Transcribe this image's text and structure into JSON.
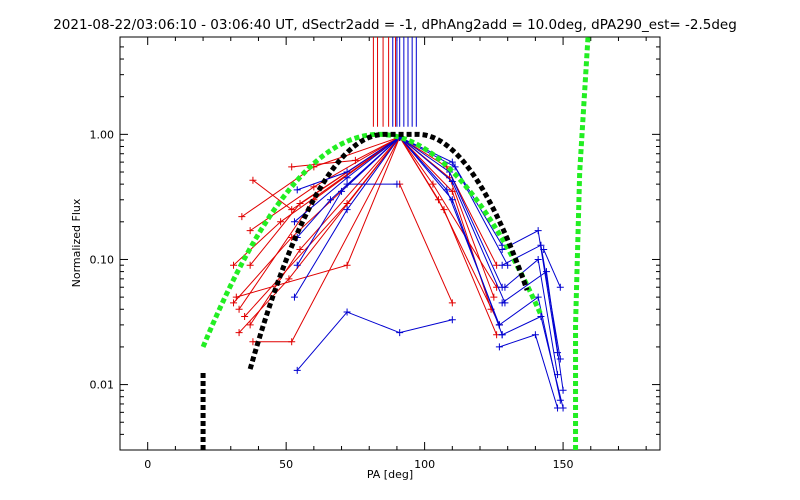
{
  "chart_data": {
    "type": "line",
    "title": "2021-08-22/03:06:10 - 03:06:40 UT, dSectr2add = -1, dPhAng2add = 10.0deg, dPA290_est= -2.5deg",
    "xlabel": "PA [deg]",
    "ylabel": "Normalized Flux",
    "xlim": [
      -10,
      185
    ],
    "ylim": [
      0.003,
      6.0
    ],
    "yscale": "log",
    "x_ticks": [
      0,
      50,
      100,
      150
    ],
    "x_tick_labels": [
      "0",
      "50",
      "100",
      "150"
    ],
    "y_ticks": [
      0.01,
      0.1,
      1.0
    ],
    "y_tick_labels": [
      "0.01",
      "0.10",
      "1.00"
    ],
    "grid": false,
    "colors": {
      "red": "#e00000",
      "blue": "#0000d0",
      "green": "#22ee22",
      "black": "#000000"
    },
    "vertical_markers": {
      "ymin": 1.15,
      "ymax": 6.0,
      "red": [
        81.5,
        83,
        85,
        87,
        89.5
      ],
      "blue": [
        88.5,
        90,
        91,
        92.5,
        94,
        95.5,
        97
      ]
    },
    "series": [
      {
        "color": "red",
        "style": "plus-line",
        "segments": [
          [
            [
              52,
              0.55
            ],
            [
              75,
              0.62
            ],
            [
              91,
              0.95
            ]
          ],
          [
            [
              38,
              0.43
            ],
            [
              52,
              0.25
            ],
            [
              91,
              0.95
            ]
          ],
          [
            [
              34,
              0.22
            ],
            [
              60,
              0.55
            ],
            [
              91,
              0.95
            ]
          ],
          [
            [
              37,
              0.17
            ],
            [
              60,
              0.38
            ],
            [
              91,
              0.95
            ]
          ],
          [
            [
              31,
              0.09
            ],
            [
              48,
              0.2
            ],
            [
              91,
              0.95
            ]
          ],
          [
            [
              37,
              0.09
            ],
            [
              55,
              0.28
            ],
            [
              91,
              0.95
            ]
          ],
          [
            [
              32,
              0.05
            ],
            [
              72,
              0.09
            ],
            [
              91,
              0.95
            ]
          ],
          [
            [
              31,
              0.045
            ],
            [
              52,
              0.15
            ],
            [
              91,
              0.95
            ]
          ],
          [
            [
              33,
              0.04
            ],
            [
              60,
              0.3
            ],
            [
              91,
              0.95
            ]
          ],
          [
            [
              35,
              0.035
            ],
            [
              72,
              0.28
            ],
            [
              91,
              0.95
            ]
          ],
          [
            [
              37,
              0.03
            ],
            [
              55,
              0.12
            ],
            [
              91,
              0.95
            ]
          ],
          [
            [
              33,
              0.026
            ],
            [
              51,
              0.07
            ],
            [
              91,
              0.95
            ]
          ],
          [
            [
              38,
              0.022
            ],
            [
              52,
              0.022
            ],
            [
              91,
              0.95
            ]
          ],
          [
            [
              91,
              0.4
            ],
            [
              110,
              0.045
            ]
          ],
          [
            [
              91,
              0.95
            ],
            [
              108,
              0.55
            ],
            [
              126,
              0.09
            ]
          ],
          [
            [
              91,
              0.95
            ],
            [
              109,
              0.45
            ],
            [
              125,
              0.05
            ]
          ],
          [
            [
              91,
              0.95
            ],
            [
              110,
              0.35
            ],
            [
              124,
              0.04
            ]
          ],
          [
            [
              91,
              0.95
            ],
            [
              105,
              0.3
            ],
            [
              127,
              0.03
            ]
          ],
          [
            [
              91,
              0.95
            ],
            [
              107,
              0.25
            ],
            [
              126,
              0.025
            ]
          ],
          [
            [
              91,
              0.95
            ],
            [
              103,
              0.4
            ],
            [
              126,
              0.06
            ]
          ]
        ]
      },
      {
        "color": "blue",
        "style": "plus-line",
        "segments": [
          [
            [
              54,
              0.36
            ],
            [
              72,
              0.5
            ],
            [
              91,
              0.95
            ]
          ],
          [
            [
              53,
              0.2
            ],
            [
              72,
              0.45
            ],
            [
              91,
              0.95
            ]
          ],
          [
            [
              54,
              0.15
            ],
            [
              66,
              0.3
            ],
            [
              91,
              0.95
            ]
          ],
          [
            [
              54,
              0.09
            ],
            [
              70,
              0.35
            ],
            [
              91,
              0.95
            ]
          ],
          [
            [
              53,
              0.05
            ],
            [
              72,
              0.25
            ],
            [
              91,
              0.95
            ]
          ],
          [
            [
              54,
              0.013
            ],
            [
              72,
              0.038
            ],
            [
              91,
              0.026
            ],
            [
              110,
              0.033
            ]
          ],
          [
            [
              72,
              0.4
            ],
            [
              90,
              0.4
            ]
          ],
          [
            [
              91,
              0.95
            ],
            [
              110,
              0.6
            ],
            [
              128,
              0.13
            ]
          ],
          [
            [
              91,
              0.95
            ],
            [
              111,
              0.55
            ],
            [
              130,
              0.09
            ]
          ],
          [
            [
              91,
              0.95
            ],
            [
              109,
              0.5
            ],
            [
              128,
              0.06
            ]
          ],
          [
            [
              91,
              0.95
            ],
            [
              110,
              0.42
            ],
            [
              129,
              0.045
            ]
          ],
          [
            [
              91,
              0.95
            ],
            [
              108,
              0.36
            ],
            [
              127,
              0.03
            ]
          ],
          [
            [
              91,
              0.95
            ],
            [
              110,
              0.3
            ],
            [
              128,
              0.025
            ]
          ],
          [
            [
              128,
              0.12
            ],
            [
              141,
              0.17
            ],
            [
              148,
              0.018
            ]
          ],
          [
            [
              128,
              0.09
            ],
            [
              142,
              0.13
            ],
            [
              149,
              0.016
            ]
          ],
          [
            [
              129,
              0.06
            ],
            [
              141,
              0.1
            ],
            [
              148,
              0.012
            ]
          ],
          [
            [
              128,
              0.045
            ],
            [
              144,
              0.08
            ],
            [
              150,
              0.009
            ]
          ],
          [
            [
              127,
              0.03
            ],
            [
              141,
              0.05
            ],
            [
              149,
              0.0075
            ]
          ],
          [
            [
              128,
              0.025
            ],
            [
              142,
              0.035
            ],
            [
              150,
              0.0065
            ]
          ],
          [
            [
              127,
              0.02
            ],
            [
              140,
              0.025
            ],
            [
              148,
              0.0065
            ]
          ],
          [
            [
              143,
              0.12
            ],
            [
              149,
              0.06
            ]
          ]
        ]
      },
      {
        "color": "green",
        "style": "thick-dashed",
        "curves": [
          {
            "peak_x": 83.5,
            "sigma": 22.7,
            "x_from": 20,
            "x_to": 142
          },
          {
            "x": [
              154.5,
              154.5,
              156,
              159
            ],
            "y": [
              0.003,
              0.03,
              0.5,
              6.0
            ]
          }
        ]
      },
      {
        "color": "black",
        "style": "thick-dashed",
        "curves": [
          {
            "peak_x": 91.5,
            "sigma": 16.5,
            "flat_half_width": 6,
            "x_from": 37,
            "x_to": 137
          },
          {
            "x": [
              20,
              20
            ],
            "y": [
              0.003,
              0.013
            ]
          }
        ]
      }
    ]
  }
}
